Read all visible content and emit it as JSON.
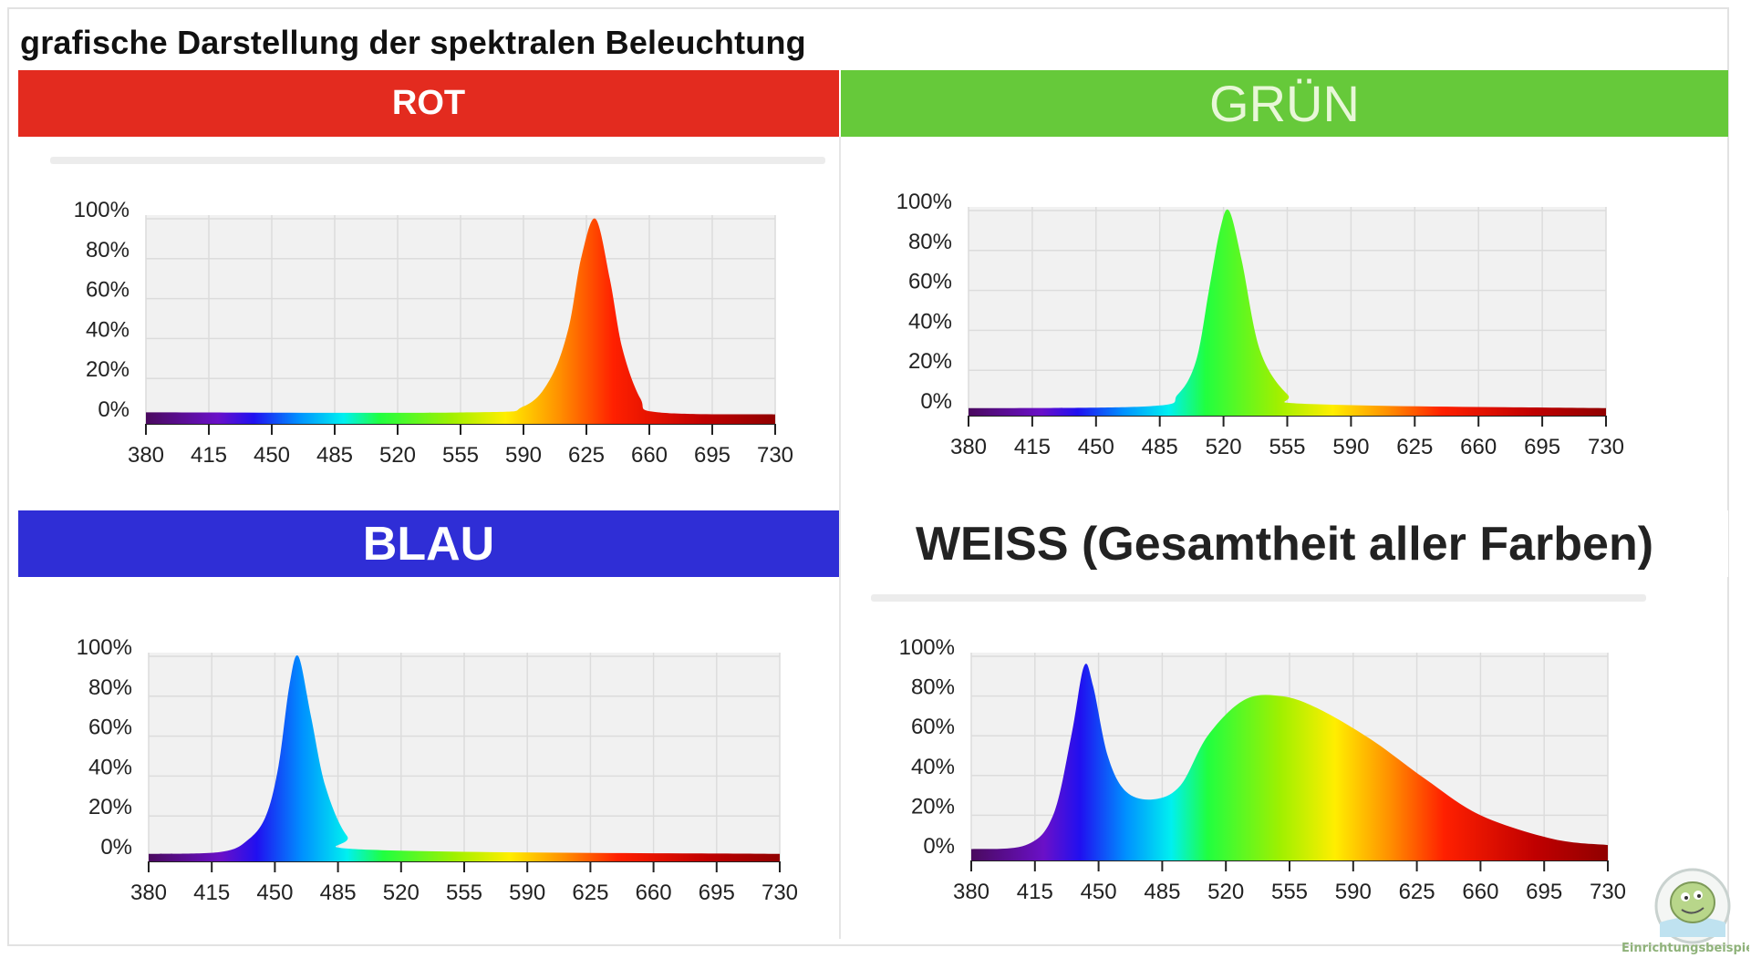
{
  "title": "grafische Darstellung der spektralen Beleuchtung",
  "panels": [
    {
      "label": "ROT",
      "color": "#e32b1f",
      "text_color": "#ffffff"
    },
    {
      "label": "GRÜN",
      "color": "#66c93a",
      "text_color": "#e8f7d8"
    },
    {
      "label": "BLAU",
      "color": "#2f2ed6",
      "text_color": "#ffffff"
    },
    {
      "label": "WEISS (Gesamtheit aller Farben)",
      "color": "#ffffff",
      "text_color": "#222222"
    }
  ],
  "watermark": "www.Einrichtungsbeispiele.de",
  "chart_data": [
    {
      "type": "area",
      "title": "ROT",
      "xlim": [
        380,
        730
      ],
      "ylim": [
        0,
        100
      ],
      "grid": true,
      "x_ticks": [
        "380",
        "415",
        "450",
        "485",
        "520",
        "555",
        "590",
        "625",
        "660",
        "695",
        "730"
      ],
      "y_ticks": [
        "0%",
        "20%",
        "40%",
        "60%",
        "80%",
        "100%"
      ],
      "x": [
        380,
        560,
        590,
        605,
        615,
        622,
        630,
        638,
        645,
        655,
        665,
        730
      ],
      "y": [
        3,
        3,
        6,
        20,
        45,
        80,
        100,
        70,
        35,
        10,
        3,
        2
      ]
    },
    {
      "type": "area",
      "title": "GRÜN",
      "xlim": [
        380,
        730
      ],
      "ylim": [
        0,
        100
      ],
      "grid": true,
      "x_ticks": [
        "380",
        "415",
        "450",
        "485",
        "520",
        "555",
        "590",
        "625",
        "660",
        "695",
        "730"
      ],
      "y_ticks": [
        "0%",
        "20%",
        "40%",
        "60%",
        "80%",
        "100%"
      ],
      "x": [
        380,
        480,
        495,
        505,
        512,
        518,
        523,
        530,
        540,
        555,
        570,
        730
      ],
      "y": [
        1,
        2,
        8,
        25,
        60,
        90,
        100,
        75,
        30,
        8,
        3,
        1
      ]
    },
    {
      "type": "area",
      "title": "BLAU",
      "xlim": [
        380,
        730
      ],
      "ylim": [
        0,
        100
      ],
      "grid": true,
      "x_ticks": [
        "380",
        "415",
        "450",
        "485",
        "520",
        "555",
        "590",
        "625",
        "660",
        "695",
        "730"
      ],
      "y_ticks": [
        "0%",
        "20%",
        "40%",
        "60%",
        "80%",
        "100%"
      ],
      "x": [
        380,
        420,
        435,
        445,
        452,
        458,
        463,
        470,
        478,
        490,
        505,
        730
      ],
      "y": [
        1,
        2,
        8,
        20,
        45,
        85,
        100,
        70,
        35,
        10,
        3,
        1
      ]
    },
    {
      "type": "area",
      "title": "WEISS (Gesamtheit aller Farben)",
      "xlim": [
        380,
        730
      ],
      "ylim": [
        0,
        100
      ],
      "grid": true,
      "x_ticks": [
        "380",
        "415",
        "450",
        "485",
        "520",
        "555",
        "590",
        "625",
        "660",
        "695",
        "730"
      ],
      "y_ticks": [
        "0%",
        "20%",
        "40%",
        "60%",
        "80%",
        "100%"
      ],
      "x": [
        380,
        410,
        425,
        435,
        442,
        447,
        455,
        465,
        480,
        495,
        510,
        530,
        550,
        570,
        600,
        630,
        660,
        700,
        730
      ],
      "y": [
        3,
        5,
        20,
        60,
        95,
        85,
        50,
        32,
        28,
        35,
        60,
        78,
        80,
        74,
        58,
        38,
        20,
        8,
        5
      ]
    }
  ]
}
